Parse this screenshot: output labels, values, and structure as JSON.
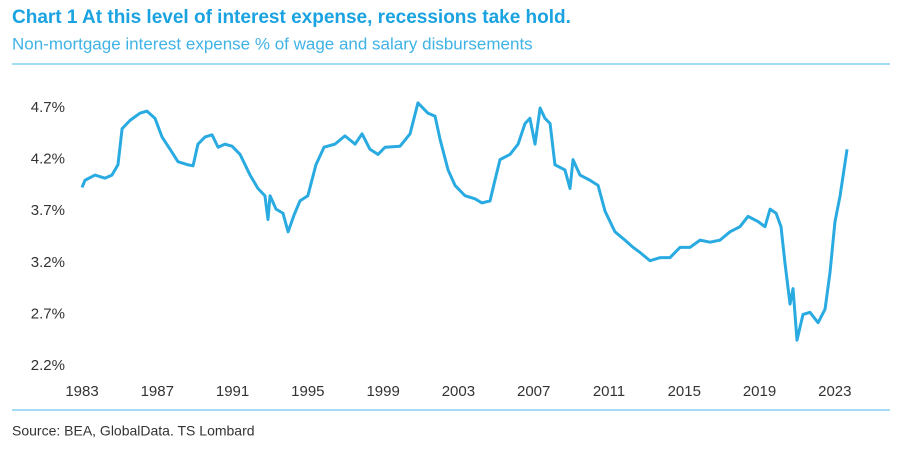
{
  "chart_data": {
    "type": "line",
    "title": "Chart 1 At this level of interest expense, recessions take hold.",
    "subtitle": "Non-mortgage interest expense % of wage and salary disbursements",
    "source": "Source: BEA, GlobalData. TS Lombard",
    "x": [
      1983.0,
      1983.16,
      1983.69,
      1984.22,
      1984.59,
      1984.91,
      1985.13,
      1985.55,
      1986.08,
      1986.45,
      1986.88,
      1987.25,
      1987.68,
      1988.1,
      1988.63,
      1988.9,
      1989.16,
      1989.54,
      1989.91,
      1990.23,
      1990.6,
      1990.97,
      1991.4,
      1991.93,
      1992.35,
      1992.72,
      1992.88,
      1992.99,
      1993.31,
      1993.68,
      1993.95,
      1994.26,
      1994.58,
      1995.0,
      1995.43,
      1995.86,
      1996.44,
      1996.97,
      1997.51,
      1997.88,
      1998.3,
      1998.73,
      1999.1,
      1999.9,
      2000.43,
      2000.85,
      2001.38,
      2001.76,
      2002.02,
      2002.45,
      2002.82,
      2003.35,
      2003.88,
      2004.25,
      2004.68,
      2004.94,
      2005.21,
      2005.74,
      2006.17,
      2006.54,
      2006.8,
      2007.07,
      2007.34,
      2007.6,
      2007.87,
      2008.13,
      2008.66,
      2008.93,
      2009.09,
      2009.46,
      2009.99,
      2010.42,
      2010.79,
      2011.32,
      2011.85,
      2012.28,
      2012.65,
      2013.18,
      2013.71,
      2014.24,
      2014.78,
      2015.31,
      2015.84,
      2016.37,
      2016.9,
      2017.43,
      2017.96,
      2018.39,
      2018.92,
      2019.29,
      2019.56,
      2019.88,
      2020.14,
      2020.35,
      2020.62,
      2020.78,
      2020.99,
      2021.31,
      2021.68,
      2022.11,
      2022.48,
      2022.74,
      2023.01,
      2023.28,
      2023.65
    ],
    "series": [
      {
        "name": "Non-mortgage interest expense",
        "color": "#29abe2",
        "values": [
          3.93,
          4.0,
          4.05,
          4.02,
          4.05,
          4.15,
          4.5,
          4.58,
          4.65,
          4.67,
          4.6,
          4.42,
          4.3,
          4.18,
          4.15,
          4.14,
          4.35,
          4.42,
          4.44,
          4.32,
          4.35,
          4.33,
          4.25,
          4.05,
          3.92,
          3.85,
          3.62,
          3.85,
          3.72,
          3.68,
          3.5,
          3.66,
          3.8,
          3.85,
          4.15,
          4.32,
          4.35,
          4.43,
          4.35,
          4.45,
          4.3,
          4.25,
          4.32,
          4.33,
          4.45,
          4.75,
          4.65,
          4.62,
          4.4,
          4.1,
          3.95,
          3.85,
          3.82,
          3.78,
          3.8,
          4.0,
          4.2,
          4.25,
          4.35,
          4.55,
          4.6,
          4.35,
          4.7,
          4.6,
          4.55,
          4.15,
          4.1,
          3.92,
          4.2,
          4.05,
          4.0,
          3.95,
          3.7,
          3.5,
          3.42,
          3.35,
          3.3,
          3.22,
          3.25,
          3.25,
          3.35,
          3.35,
          3.42,
          3.4,
          3.42,
          3.5,
          3.55,
          3.65,
          3.6,
          3.55,
          3.72,
          3.68,
          3.55,
          3.2,
          2.8,
          2.95,
          2.45,
          2.7,
          2.72,
          2.62,
          2.75,
          3.1,
          3.6,
          3.85,
          4.3
        ]
      }
    ],
    "xlim": [
      1982.5,
      2024.8
    ],
    "xticks": [
      1983,
      1987,
      1991,
      1995,
      1999,
      2003,
      2007,
      2011,
      2015,
      2019,
      2023
    ],
    "ylim": [
      2.1,
      4.8
    ],
    "yticks": [
      {
        "value": 2.2,
        "label": "2.2%"
      },
      {
        "value": 2.7,
        "label": "2.7%"
      },
      {
        "value": 3.2,
        "label": "3.2%"
      },
      {
        "value": 3.7,
        "label": "3.7%"
      },
      {
        "value": 4.2,
        "label": "4.2%"
      },
      {
        "value": 4.7,
        "label": "4.7%"
      }
    ],
    "grid": false
  }
}
